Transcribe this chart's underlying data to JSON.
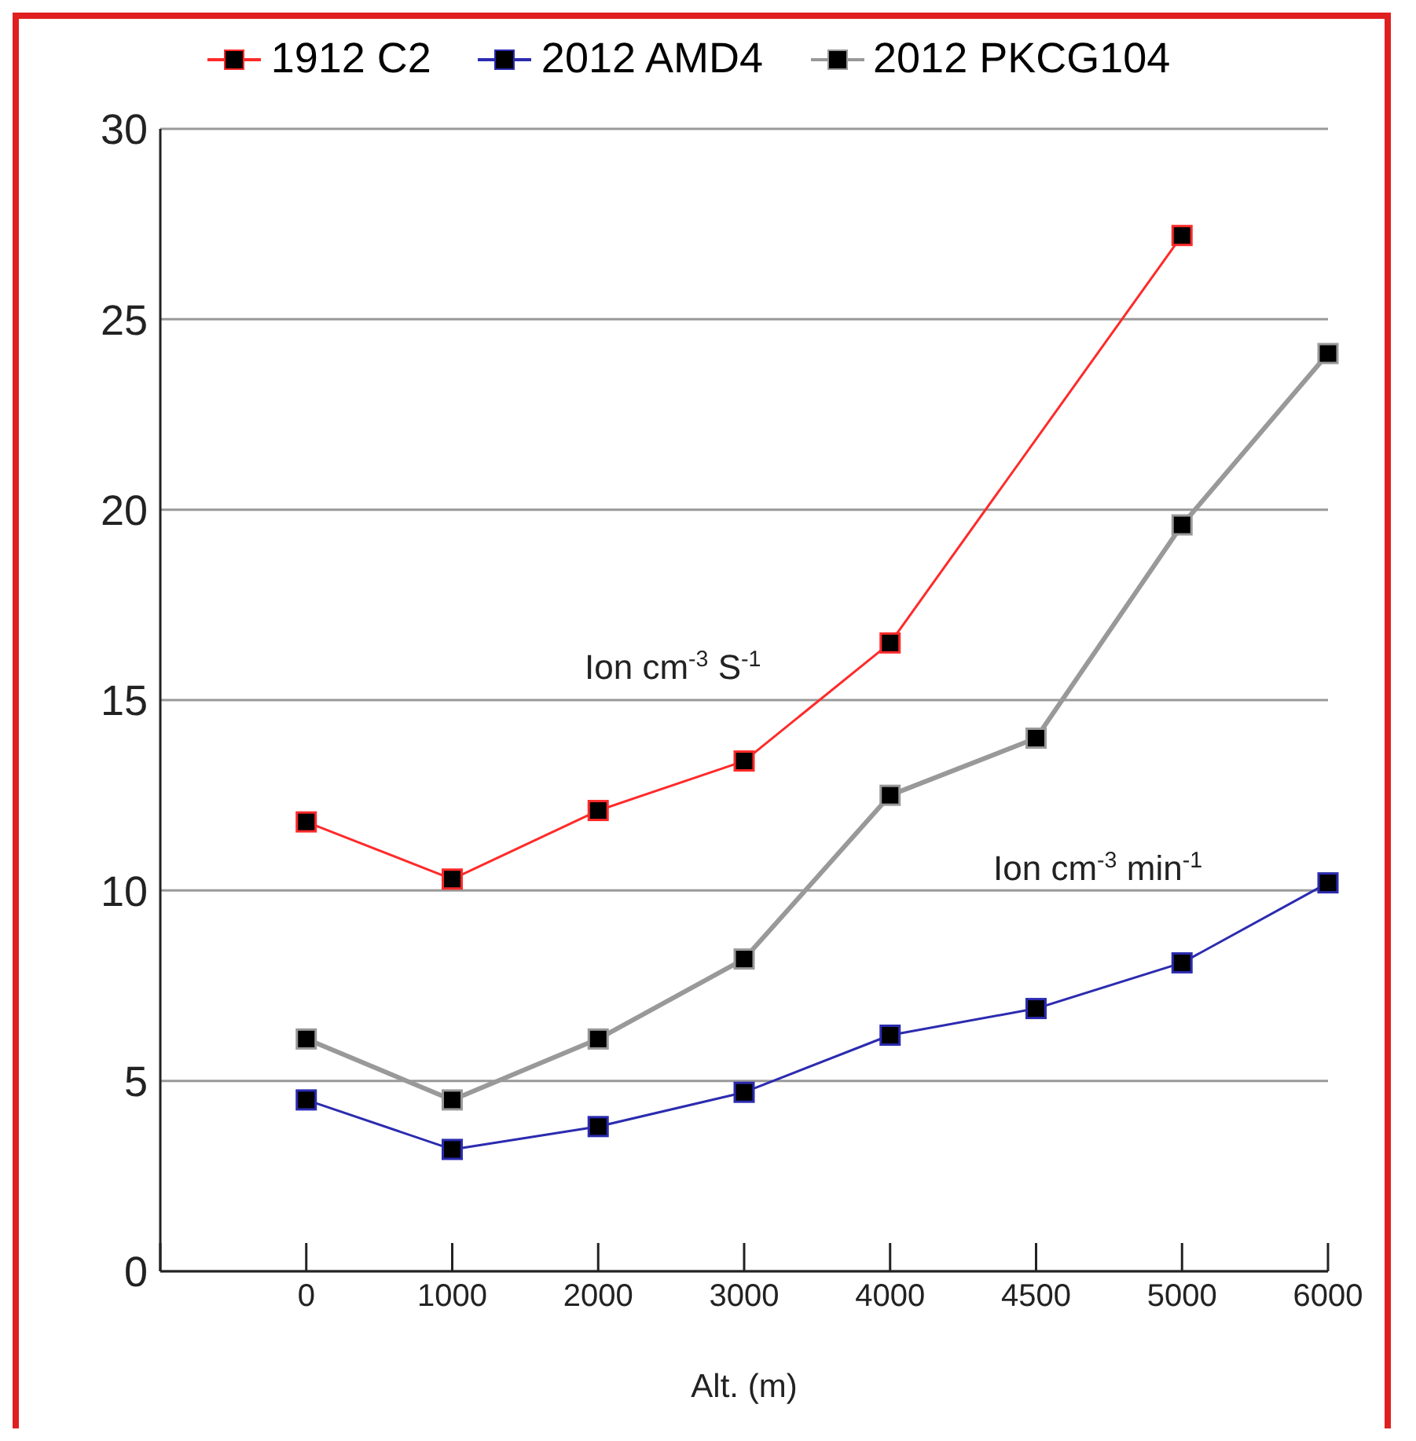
{
  "chart_data": {
    "type": "line",
    "xlabel": "Alt. (m)",
    "categories": [
      null,
      "0",
      "1000",
      "2000",
      "3000",
      "4000",
      "4500",
      "5000",
      "6000"
    ],
    "series": [
      {
        "name": "1912 C2",
        "color": "#ff2a2a",
        "values": [
          null,
          11.8,
          10.3,
          12.1,
          13.4,
          16.5,
          null,
          27.2,
          null
        ]
      },
      {
        "name": "2012 AMD4",
        "color": "#2b2bb0",
        "values": [
          null,
          4.5,
          3.2,
          3.8,
          4.7,
          6.2,
          6.9,
          8.1,
          10.2
        ]
      },
      {
        "name": "2012 PKCG104",
        "color": "#999999",
        "values": [
          null,
          6.1,
          4.5,
          6.1,
          8.2,
          12.5,
          14.0,
          19.6,
          24.1
        ]
      }
    ],
    "ylim": [
      0,
      30
    ],
    "yticks": [
      0,
      5,
      10,
      15,
      20,
      25,
      30
    ],
    "grid": "y",
    "legend": "top",
    "marker": "square",
    "line_style": "solid",
    "annotations": [
      "Ion cm$^{-3}$ S$^{-1}$",
      "Ion cm$^{-3}$ min$^{-1}$"
    ]
  }
}
